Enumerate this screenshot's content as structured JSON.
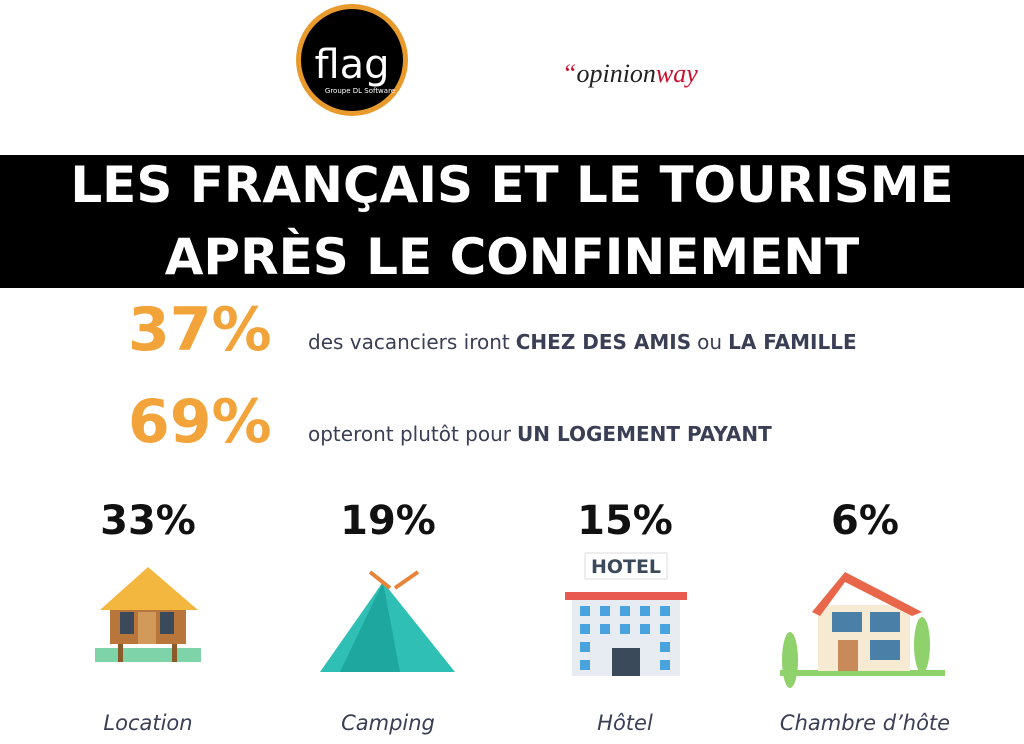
{
  "logos": {
    "flag": {
      "name": "flag",
      "tagline": "Groupe DL Software"
    },
    "opinionway": {
      "quote": "“",
      "part1": "opinion",
      "part2": "way"
    }
  },
  "title": {
    "line1": "LES FRANÇAIS ET LE TOURISME",
    "line2": "APRÈS LE CONFINEMENT"
  },
  "stats": [
    {
      "value": "37%",
      "segments": [
        {
          "text": "des vacanciers iront",
          "bold": false
        },
        {
          "text": "CHEZ DES AMIS",
          "bold": true
        },
        {
          "text": "ou",
          "bold": false
        },
        {
          "text": "LA FAMILLE",
          "bold": true
        }
      ]
    },
    {
      "value": "69%",
      "segments": [
        {
          "text": "opteront plutôt pour",
          "bold": false
        },
        {
          "text": "UN LOGEMENT PAYANT",
          "bold": true
        }
      ]
    }
  ],
  "hotel_sign": "HOTEL",
  "accommodations": [
    {
      "value": "33%",
      "label": "Location"
    },
    {
      "value": "19%",
      "label": "Camping"
    },
    {
      "value": "15%",
      "label": "Hôtel"
    },
    {
      "value": "6%",
      "label": "Chambre d’hôte"
    }
  ]
}
